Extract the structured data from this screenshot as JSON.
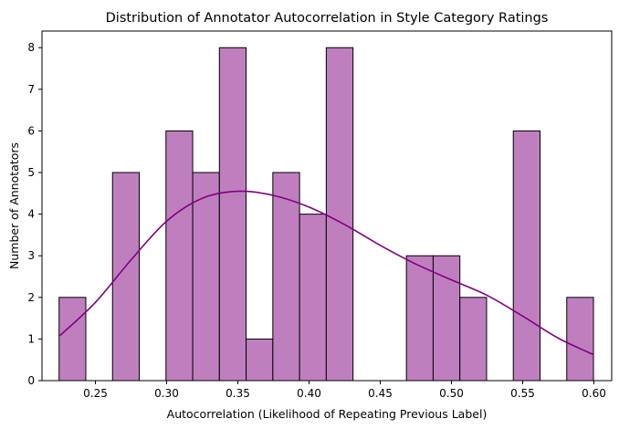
{
  "chart_data": {
    "type": "histogram",
    "title": "Distribution of Annotator Autocorrelation in Style Category Ratings",
    "xlabel": "Autocorrelation (Likelihood of Repeating Previous Label)",
    "ylabel": "Number of Annotators",
    "xlim": [
      0.2125,
      0.6125
    ],
    "ylim": [
      0,
      8.4
    ],
    "xticks": [
      0.25,
      0.3,
      0.35,
      0.4,
      0.45,
      0.5,
      0.55,
      0.6
    ],
    "xtick_labels": [
      "0.25",
      "0.30",
      "0.35",
      "0.40",
      "0.45",
      "0.50",
      "0.55",
      "0.60"
    ],
    "yticks": [
      0,
      1,
      2,
      3,
      4,
      5,
      6,
      7,
      8
    ],
    "ytick_labels": [
      "0",
      "1",
      "2",
      "3",
      "4",
      "5",
      "6",
      "7",
      "8"
    ],
    "bin_start": 0.2245,
    "bin_width": 0.01876,
    "counts": [
      2,
      0,
      5,
      0,
      6,
      5,
      8,
      1,
      5,
      4,
      8,
      0,
      0,
      3,
      3,
      2,
      0,
      6,
      0,
      2
    ],
    "kde": {
      "x": [
        0.225,
        0.25,
        0.275,
        0.3,
        0.325,
        0.35,
        0.375,
        0.4,
        0.425,
        0.45,
        0.475,
        0.5,
        0.525,
        0.55,
        0.575,
        0.6
      ],
      "y": [
        1.08,
        1.88,
        2.9,
        3.83,
        4.38,
        4.55,
        4.45,
        4.17,
        3.75,
        3.25,
        2.8,
        2.42,
        2.05,
        1.55,
        1.02,
        0.62
      ]
    },
    "bar_color": "#bf7fbf",
    "bar_edge_color": "#000000",
    "kde_color": "#800080",
    "grid": false,
    "legend": false
  }
}
